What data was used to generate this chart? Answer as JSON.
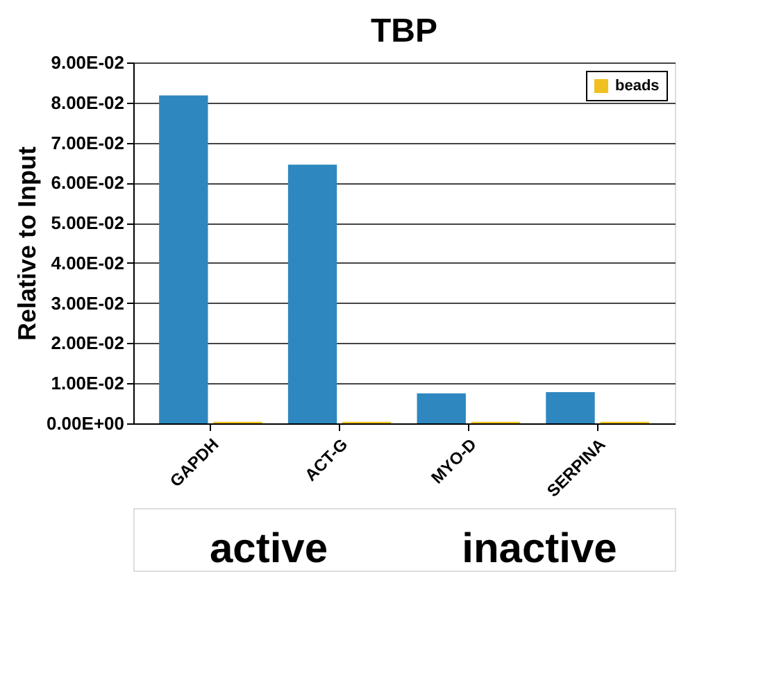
{
  "chart_data": {
    "type": "bar",
    "title": "TBP",
    "ylabel": "Relative to Input",
    "categories": [
      "GAPDH",
      "ACT-G",
      "MYO-D",
      "SERPINA"
    ],
    "series": [
      {
        "color": "#2e88bf",
        "values": [
          0.0818,
          0.0645,
          0.0075,
          0.0078
        ]
      },
      {
        "name": "beads",
        "color": "#f0c020",
        "values": [
          0.0004,
          0.0004,
          0.0004,
          0.0004
        ]
      }
    ],
    "ylim": [
      0,
      0.09
    ],
    "yticks": [
      {
        "value": 0,
        "label": "0.00E+00"
      },
      {
        "value": 0.01,
        "label": "1.00E-02"
      },
      {
        "value": 0.02,
        "label": "2.00E-02"
      },
      {
        "value": 0.03,
        "label": "3.00E-02"
      },
      {
        "value": 0.04,
        "label": "4.00E-02"
      },
      {
        "value": 0.05,
        "label": "5.00E-02"
      },
      {
        "value": 0.06,
        "label": "6.00E-02"
      },
      {
        "value": 0.07,
        "label": "7.00E-02"
      },
      {
        "value": 0.08,
        "label": "8.00E-02"
      },
      {
        "value": 0.09,
        "label": "9.00E-02"
      }
    ],
    "grid": "y",
    "legend": "top right",
    "annotations": [
      "active",
      "inactive"
    ]
  }
}
